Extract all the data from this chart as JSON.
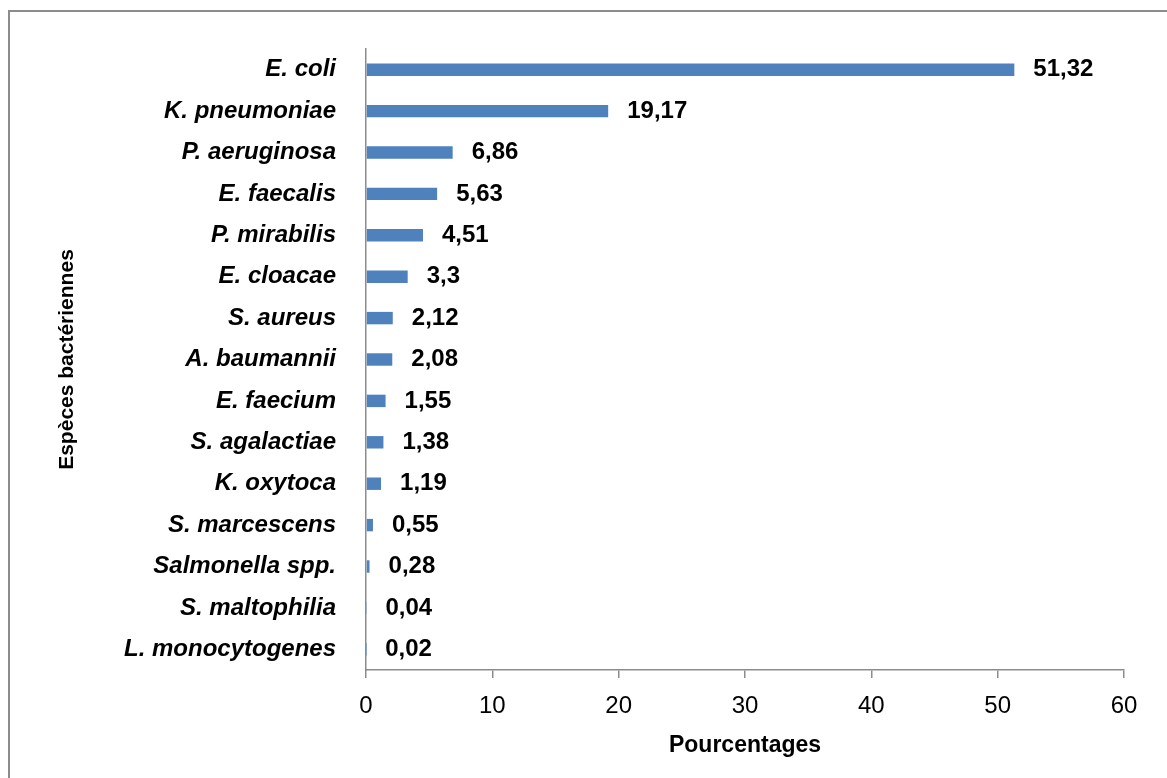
{
  "chart_data": {
    "type": "bar",
    "orientation": "horizontal",
    "xlabel": "Pourcentages",
    "ylabel": "Espèces bactériennes",
    "categories": [
      "E. coli",
      "K. pneumoniae",
      "P. aeruginosa",
      "E. faecalis",
      "P. mirabilis",
      "E. cloacae",
      "S. aureus",
      "A. baumannii",
      "E. faecium",
      "S. agalactiae",
      "K. oxytoca",
      "S. marcescens",
      "Salmonella spp.",
      "S. maltophilia",
      "L. monocytogenes"
    ],
    "values": [
      51.32,
      19.17,
      6.86,
      5.63,
      4.51,
      3.3,
      2.12,
      2.08,
      1.55,
      1.38,
      1.19,
      0.55,
      0.28,
      0.04,
      0.02
    ],
    "value_labels": [
      "51,32",
      "19,17",
      "6,86",
      "5,63",
      "4,51",
      "3,3",
      "2,12",
      "2,08",
      "1,55",
      "1,38",
      "1,19",
      "0,55",
      "0,28",
      "0,04",
      "0,02"
    ],
    "color": "#4f81bd",
    "xlim": [
      0,
      60
    ],
    "xticks": [
      0,
      10,
      20,
      30,
      40,
      50,
      60
    ]
  }
}
